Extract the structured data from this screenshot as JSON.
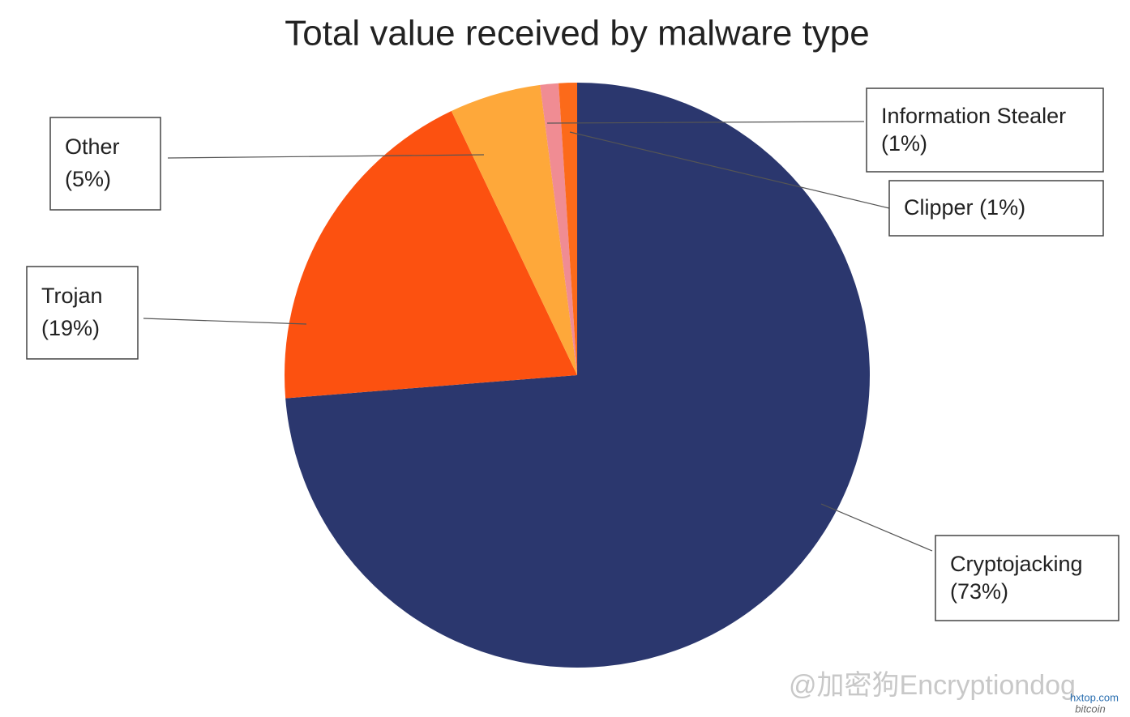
{
  "chart_data": {
    "type": "pie",
    "title": "Total value received by malware type",
    "categories": [
      "Cryptojacking",
      "Trojan",
      "Other",
      "Information Stealer",
      "Clipper"
    ],
    "values": [
      73,
      19,
      5,
      1,
      1
    ],
    "value_labels": [
      "(73%)",
      "(19%)",
      "(5%)",
      "(1%)",
      "(1%)"
    ],
    "colors": [
      "#2b376e",
      "#fc5110",
      "#fea83a",
      "#f08c93",
      "#fc6a1a"
    ]
  },
  "watermark": {
    "text": "@加密狗Encryptiondog",
    "site": "hxtop.com",
    "brand": "bitcoin"
  }
}
